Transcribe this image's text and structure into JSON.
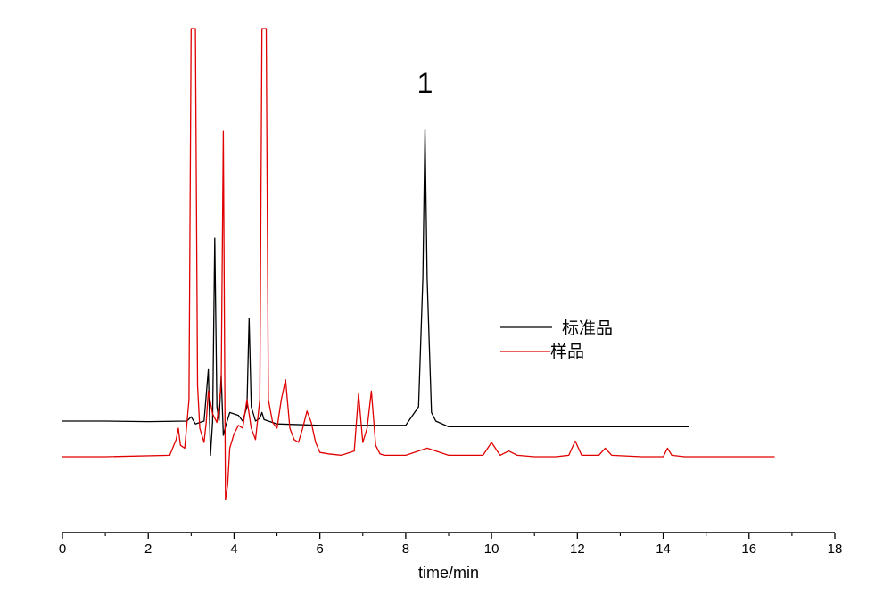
{
  "chart_data": {
    "type": "line",
    "xlabel": "time/min",
    "ylabel": "",
    "xlim": [
      0,
      18
    ],
    "x_ticks": [
      0,
      2,
      4,
      6,
      8,
      10,
      12,
      14,
      16,
      18
    ],
    "grid": false,
    "legend_position": "center-right",
    "annotations": [
      {
        "text": "1",
        "x": 8.45
      }
    ],
    "series": [
      {
        "name": "标准品",
        "color": "#000000",
        "x": [
          0.0,
          1.0,
          2.0,
          2.9,
          3.0,
          3.1,
          3.3,
          3.4,
          3.45,
          3.5,
          3.55,
          3.6,
          3.65,
          3.7,
          3.75,
          3.8,
          3.9,
          4.0,
          4.1,
          4.2,
          4.3,
          4.35,
          4.4,
          4.5,
          4.6,
          4.65,
          4.7,
          4.8,
          5.0,
          6.0,
          7.0,
          7.5,
          8.0,
          8.3,
          8.4,
          8.45,
          8.5,
          8.6,
          8.7,
          9.0,
          10.0,
          12.0,
          14.0,
          14.6
        ],
        "y": [
          0.0,
          0.0,
          -0.02,
          0.0,
          0.15,
          -0.1,
          0.0,
          1.8,
          -1.2,
          0.0,
          6.4,
          0.5,
          0.0,
          1.6,
          -0.5,
          -0.2,
          0.3,
          0.25,
          0.2,
          0.0,
          0.5,
          3.6,
          0.5,
          0.0,
          0.1,
          0.3,
          0.05,
          0.0,
          -0.1,
          -0.15,
          -0.15,
          -0.15,
          -0.15,
          0.5,
          5.0,
          10.2,
          5.0,
          0.3,
          0.0,
          -0.2,
          -0.2,
          -0.2,
          -0.2,
          -0.2
        ]
      },
      {
        "name": "样品",
        "color": "#e00000",
        "x": [
          0.0,
          1.0,
          2.5,
          2.65,
          2.7,
          2.75,
          2.85,
          2.95,
          3.0,
          3.1,
          3.15,
          3.2,
          3.3,
          3.35,
          3.4,
          3.5,
          3.6,
          3.7,
          3.75,
          3.8,
          3.85,
          3.9,
          4.0,
          4.1,
          4.2,
          4.3,
          4.4,
          4.5,
          4.6,
          4.65,
          4.7,
          4.75,
          4.8,
          4.9,
          5.0,
          5.1,
          5.2,
          5.3,
          5.4,
          5.5,
          5.6,
          5.7,
          5.8,
          5.9,
          6.0,
          6.2,
          6.5,
          6.8,
          6.9,
          7.0,
          7.1,
          7.2,
          7.3,
          7.4,
          7.5,
          8.0,
          8.5,
          9.0,
          9.5,
          9.8,
          10.0,
          10.2,
          10.4,
          10.6,
          11.0,
          11.5,
          11.8,
          11.95,
          12.1,
          12.5,
          12.65,
          12.8,
          13.5,
          14.0,
          14.1,
          14.2,
          14.5,
          15.0,
          16.0,
          16.6
        ],
        "y": [
          0.0,
          0.0,
          0.05,
          0.6,
          1.0,
          0.4,
          0.3,
          2.0,
          15.0,
          15.0,
          2.5,
          1.0,
          0.5,
          1.2,
          2.3,
          1.5,
          1.2,
          2.5,
          11.4,
          -1.5,
          -1.0,
          0.3,
          0.8,
          1.1,
          1.0,
          2.0,
          1.0,
          0.6,
          2.0,
          15.0,
          15.0,
          15.0,
          2.0,
          1.2,
          1.0,
          2.0,
          2.7,
          1.0,
          0.6,
          0.5,
          1.0,
          1.6,
          1.2,
          0.5,
          0.15,
          0.1,
          0.05,
          0.2,
          2.2,
          0.5,
          1.0,
          2.3,
          0.4,
          0.1,
          0.05,
          0.05,
          0.3,
          0.05,
          0.05,
          0.05,
          0.5,
          0.05,
          0.2,
          0.05,
          0.0,
          0.0,
          0.05,
          0.55,
          0.05,
          0.05,
          0.3,
          0.05,
          0.0,
          0.0,
          0.3,
          0.05,
          0.0,
          0.0,
          0.0,
          0.0
        ]
      }
    ]
  }
}
